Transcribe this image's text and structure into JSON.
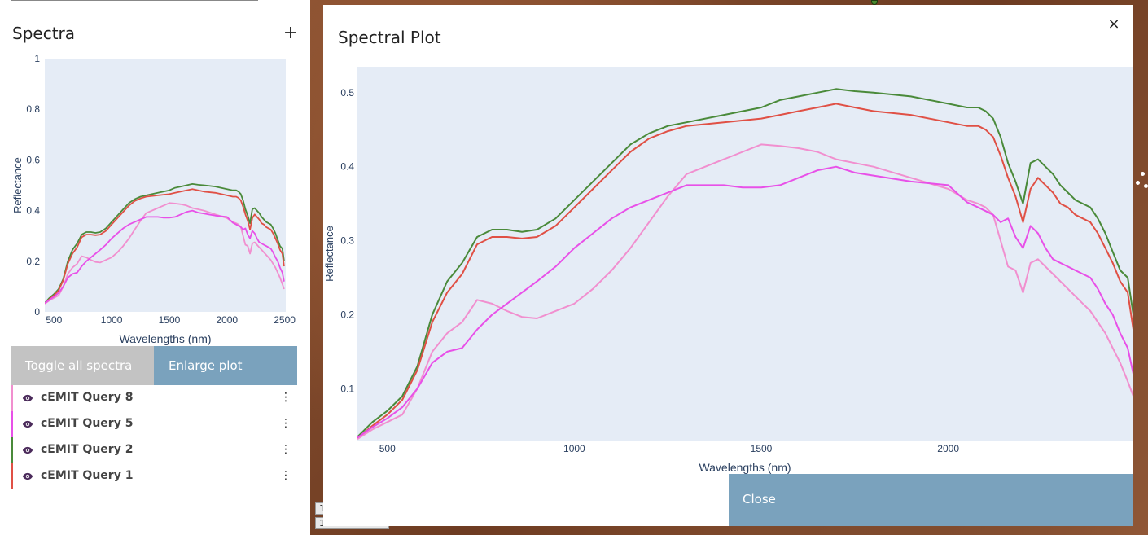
{
  "panel": {
    "title": "Spectra",
    "add_label": "+",
    "toggle_label": "Toggle all spectra",
    "enlarge_label": "Enlarge plot"
  },
  "spectra": [
    {
      "label": "cEMIT Query 8",
      "color": "#f18fcf",
      "menu": "⋮"
    },
    {
      "label": "cEMIT Query 5",
      "color": "#e850e8",
      "menu": "⋮"
    },
    {
      "label": "cEMIT Query 2",
      "color": "#4a8a3a",
      "menu": "⋮"
    },
    {
      "label": "cEMIT Query 1",
      "color": "#e05045",
      "menu": "⋮"
    }
  ],
  "modal": {
    "title": "Spectral Plot",
    "close_x": "×",
    "close_label": "Close"
  },
  "map": {
    "tag1": "1",
    "tag2": "1 ..."
  },
  "chart_data": [
    {
      "type": "line",
      "title": "",
      "xlabel": "Wavelengths (nm)",
      "ylabel": "Reflectance",
      "xlim": [
        420,
        2510
      ],
      "ylim": [
        0,
        1
      ],
      "xticks": [
        500,
        1000,
        1500,
        2000,
        2500
      ],
      "yticks": [
        0,
        0.2,
        0.4,
        0.6,
        0.8,
        1
      ],
      "ytick_labels": [
        "0",
        "0.2",
        "0.4",
        "0.6",
        "0.8",
        "1"
      ],
      "grid": false,
      "plot_bg": "#e5ecf6"
    },
    {
      "type": "line",
      "title": "",
      "xlabel": "Wavelengths (nm)",
      "ylabel": "Reflectance",
      "xlim": [
        420,
        2495
      ],
      "ylim": [
        0.03,
        0.535
      ],
      "xticks": [
        500,
        1000,
        1500,
        2000
      ],
      "yticks": [
        0.1,
        0.2,
        0.3,
        0.4,
        0.5
      ],
      "ytick_labels": [
        "0.1",
        "0.2",
        "0.3",
        "0.4",
        "0.5"
      ],
      "grid": false,
      "plot_bg": "#e5ecf6"
    }
  ],
  "chart_series": [
    {
      "color": "#4a8a3a",
      "x": [
        420,
        460,
        500,
        540,
        580,
        620,
        660,
        700,
        740,
        780,
        820,
        860,
        900,
        950,
        1000,
        1050,
        1100,
        1150,
        1200,
        1250,
        1300,
        1400,
        1500,
        1550,
        1600,
        1650,
        1700,
        1750,
        1800,
        1900,
        2000,
        2050,
        2080,
        2100,
        2120,
        2140,
        2160,
        2180,
        2200,
        2220,
        2240,
        2260,
        2280,
        2300,
        2320,
        2340,
        2360,
        2380,
        2400,
        2420,
        2440,
        2460,
        2480,
        2495
      ],
      "y": [
        0.035,
        0.055,
        0.07,
        0.09,
        0.13,
        0.2,
        0.245,
        0.27,
        0.305,
        0.315,
        0.315,
        0.312,
        0.315,
        0.33,
        0.355,
        0.38,
        0.405,
        0.43,
        0.445,
        0.455,
        0.46,
        0.47,
        0.48,
        0.49,
        0.495,
        0.5,
        0.505,
        0.502,
        0.5,
        0.495,
        0.485,
        0.48,
        0.48,
        0.475,
        0.465,
        0.44,
        0.405,
        0.38,
        0.35,
        0.405,
        0.41,
        0.4,
        0.39,
        0.375,
        0.365,
        0.355,
        0.35,
        0.345,
        0.33,
        0.31,
        0.285,
        0.26,
        0.25,
        0.2
      ]
    },
    {
      "color": "#e05045",
      "x": [
        420,
        460,
        500,
        540,
        580,
        620,
        660,
        700,
        740,
        780,
        820,
        860,
        900,
        950,
        1000,
        1050,
        1100,
        1150,
        1200,
        1250,
        1300,
        1400,
        1500,
        1550,
        1600,
        1650,
        1700,
        1750,
        1800,
        1900,
        2000,
        2050,
        2080,
        2100,
        2120,
        2140,
        2160,
        2180,
        2200,
        2220,
        2240,
        2260,
        2280,
        2300,
        2320,
        2340,
        2360,
        2380,
        2400,
        2420,
        2440,
        2460,
        2480,
        2495
      ],
      "y": [
        0.033,
        0.05,
        0.065,
        0.085,
        0.125,
        0.19,
        0.23,
        0.255,
        0.295,
        0.305,
        0.305,
        0.303,
        0.305,
        0.32,
        0.345,
        0.37,
        0.395,
        0.42,
        0.438,
        0.448,
        0.455,
        0.46,
        0.465,
        0.47,
        0.475,
        0.48,
        0.485,
        0.48,
        0.475,
        0.47,
        0.46,
        0.455,
        0.455,
        0.45,
        0.44,
        0.415,
        0.385,
        0.36,
        0.325,
        0.37,
        0.385,
        0.375,
        0.365,
        0.35,
        0.345,
        0.335,
        0.33,
        0.325,
        0.31,
        0.29,
        0.27,
        0.245,
        0.23,
        0.18
      ]
    },
    {
      "color": "#f18fcf",
      "x": [
        420,
        460,
        500,
        540,
        580,
        620,
        660,
        700,
        740,
        780,
        820,
        860,
        900,
        950,
        1000,
        1050,
        1100,
        1150,
        1200,
        1250,
        1300,
        1400,
        1450,
        1500,
        1550,
        1600,
        1650,
        1700,
        1750,
        1800,
        1900,
        2000,
        2050,
        2080,
        2100,
        2120,
        2140,
        2160,
        2180,
        2200,
        2220,
        2240,
        2260,
        2280,
        2300,
        2320,
        2340,
        2360,
        2380,
        2400,
        2420,
        2440,
        2460,
        2480,
        2495
      ],
      "y": [
        0.032,
        0.045,
        0.055,
        0.065,
        0.1,
        0.15,
        0.175,
        0.19,
        0.22,
        0.215,
        0.205,
        0.197,
        0.195,
        0.205,
        0.215,
        0.235,
        0.26,
        0.29,
        0.325,
        0.36,
        0.39,
        0.41,
        0.42,
        0.43,
        0.428,
        0.425,
        0.42,
        0.41,
        0.405,
        0.4,
        0.385,
        0.37,
        0.355,
        0.35,
        0.345,
        0.335,
        0.3,
        0.265,
        0.26,
        0.23,
        0.27,
        0.275,
        0.265,
        0.255,
        0.245,
        0.235,
        0.225,
        0.215,
        0.205,
        0.19,
        0.175,
        0.155,
        0.135,
        0.11,
        0.09
      ]
    },
    {
      "color": "#e850e8",
      "x": [
        420,
        460,
        500,
        540,
        580,
        620,
        660,
        700,
        740,
        780,
        820,
        860,
        900,
        950,
        1000,
        1050,
        1100,
        1150,
        1200,
        1250,
        1300,
        1400,
        1450,
        1500,
        1550,
        1600,
        1650,
        1700,
        1750,
        1800,
        1900,
        2000,
        2050,
        2080,
        2100,
        2120,
        2140,
        2160,
        2180,
        2200,
        2220,
        2240,
        2260,
        2280,
        2300,
        2320,
        2340,
        2360,
        2380,
        2400,
        2420,
        2440,
        2460,
        2480,
        2495
      ],
      "y": [
        0.034,
        0.048,
        0.06,
        0.075,
        0.1,
        0.135,
        0.15,
        0.155,
        0.18,
        0.2,
        0.215,
        0.23,
        0.245,
        0.265,
        0.29,
        0.31,
        0.33,
        0.345,
        0.355,
        0.365,
        0.375,
        0.375,
        0.372,
        0.372,
        0.375,
        0.385,
        0.395,
        0.4,
        0.392,
        0.388,
        0.38,
        0.375,
        0.352,
        0.345,
        0.34,
        0.335,
        0.325,
        0.33,
        0.305,
        0.29,
        0.32,
        0.31,
        0.29,
        0.275,
        0.27,
        0.265,
        0.26,
        0.255,
        0.25,
        0.235,
        0.215,
        0.2,
        0.175,
        0.155,
        0.12
      ]
    }
  ]
}
